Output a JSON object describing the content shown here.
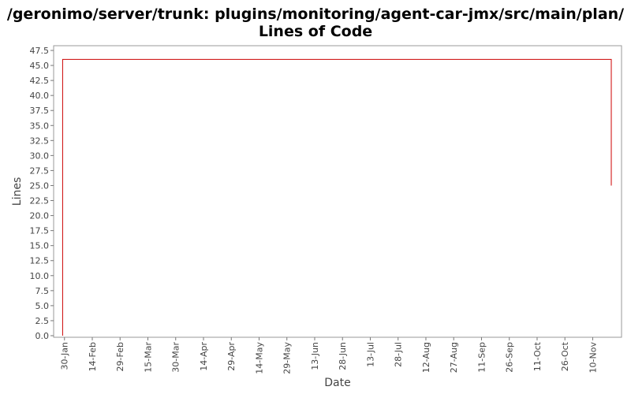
{
  "title_line1": "/geronimo/server/trunk: plugins/monitoring/agent-car-jmx/src/main/plan/",
  "title_line2": "Lines of Code",
  "chart_data": {
    "type": "line",
    "title": "/geronimo/server/trunk: plugins/monitoring/agent-car-jmx/src/main/plan/ Lines of Code",
    "xlabel": "Date",
    "ylabel": "Lines",
    "ylim": [
      0,
      47.5
    ],
    "yticks": [
      "0.0",
      "2.5",
      "5.0",
      "7.5",
      "10.0",
      "12.5",
      "15.0",
      "17.5",
      "20.0",
      "22.5",
      "25.0",
      "27.5",
      "30.0",
      "32.5",
      "35.0",
      "37.5",
      "40.0",
      "42.5",
      "45.0",
      "47.5"
    ],
    "xlim": [
      "2008-01-25",
      "2008-11-23"
    ],
    "xticks": [
      {
        "date": "2008-01-30",
        "label": "30-Jan"
      },
      {
        "date": "2008-02-14",
        "label": "14-Feb"
      },
      {
        "date": "2008-02-29",
        "label": "29-Feb"
      },
      {
        "date": "2008-03-15",
        "label": "15-Mar"
      },
      {
        "date": "2008-03-30",
        "label": "30-Mar"
      },
      {
        "date": "2008-04-14",
        "label": "14-Apr"
      },
      {
        "date": "2008-04-29",
        "label": "29-Apr"
      },
      {
        "date": "2008-05-14",
        "label": "14-May"
      },
      {
        "date": "2008-05-29",
        "label": "29-May"
      },
      {
        "date": "2008-06-13",
        "label": "13-Jun"
      },
      {
        "date": "2008-06-28",
        "label": "28-Jun"
      },
      {
        "date": "2008-07-13",
        "label": "13-Jul"
      },
      {
        "date": "2008-07-28",
        "label": "28-Jul"
      },
      {
        "date": "2008-08-12",
        "label": "12-Aug"
      },
      {
        "date": "2008-08-27",
        "label": "27-Aug"
      },
      {
        "date": "2008-09-11",
        "label": "11-Sep"
      },
      {
        "date": "2008-09-26",
        "label": "26-Sep"
      },
      {
        "date": "2008-10-11",
        "label": "11-Oct"
      },
      {
        "date": "2008-10-26",
        "label": "26-Oct"
      },
      {
        "date": "2008-11-10",
        "label": "10-Nov"
      }
    ],
    "series": [
      {
        "step": true,
        "color": "#cc0000",
        "points": [
          {
            "x": "2008-01-29",
            "y": 0
          },
          {
            "x": "2008-01-29",
            "y": 46
          },
          {
            "x": "2008-11-20",
            "y": 46
          },
          {
            "x": "2008-11-20",
            "y": 25
          }
        ]
      }
    ],
    "grid": false,
    "legend": "none"
  }
}
